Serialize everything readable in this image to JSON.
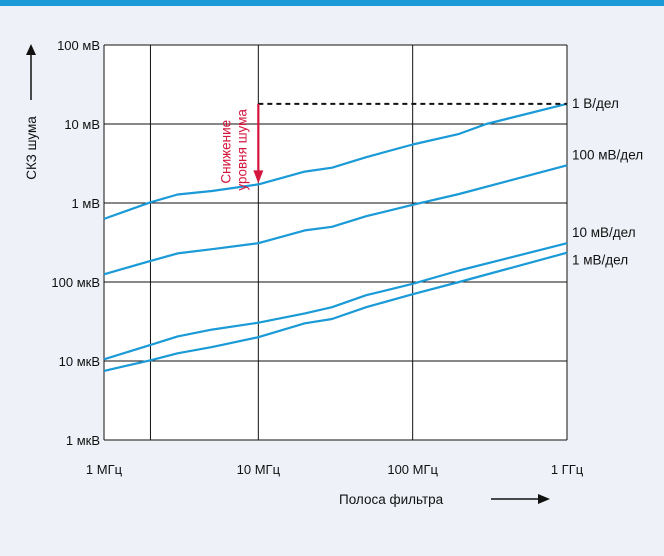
{
  "chart_data": {
    "type": "line",
    "title": "",
    "xlabel": "Полоса фильтра",
    "ylabel": "СКЗ шума",
    "x_scale": "log",
    "y_scale": "log",
    "xlim": [
      1000000.0,
      1000000000.0
    ],
    "ylim": [
      1e-06,
      0.1
    ],
    "grid": true,
    "x_ticks": [
      {
        "value": 1000000.0,
        "label": "1 МГц"
      },
      {
        "value": 10000000.0,
        "label": "10 МГц"
      },
      {
        "value": 100000000.0,
        "label": "100 МГц"
      },
      {
        "value": 1000000000.0,
        "label": "1 ГГц"
      }
    ],
    "x_extra_grid": [
      2000000.0
    ],
    "y_ticks": [
      {
        "value": 1e-06,
        "label": "1 мкВ"
      },
      {
        "value": 1e-05,
        "label": "10 мкВ"
      },
      {
        "value": 0.0001,
        "label": "100 мкВ"
      },
      {
        "value": 0.001,
        "label": "1 мВ"
      },
      {
        "value": 0.01,
        "label": "10 мВ"
      },
      {
        "value": 0.1,
        "label": "100 мВ"
      }
    ],
    "series": [
      {
        "name": "1 В/дел",
        "x": [
          1000000.0,
          2000000.0,
          3000000.0,
          5000000.0,
          10000000.0,
          20000000.0,
          30000000.0,
          50000000.0,
          100000000.0,
          200000000.0,
          300000000.0,
          1000000000.0
        ],
        "y": [
          0.00063,
          0.00102,
          0.00128,
          0.00142,
          0.00172,
          0.0025,
          0.0028,
          0.0038,
          0.0055,
          0.0075,
          0.01,
          0.018
        ]
      },
      {
        "name": "100 мВ/дел",
        "x": [
          1000000.0,
          2000000.0,
          3000000.0,
          5000000.0,
          10000000.0,
          20000000.0,
          30000000.0,
          50000000.0,
          100000000.0,
          200000000.0,
          1000000000.0
        ],
        "y": [
          0.000125,
          0.000185,
          0.00023,
          0.00026,
          0.00031,
          0.00045,
          0.0005,
          0.00068,
          0.00095,
          0.0013,
          0.003
        ]
      },
      {
        "name": "10 мВ/дел",
        "x": [
          1000000.0,
          2000000.0,
          3000000.0,
          5000000.0,
          10000000.0,
          20000000.0,
          30000000.0,
          50000000.0,
          100000000.0,
          200000000.0,
          1000000000.0
        ],
        "y": [
          1.05e-05,
          1.6e-05,
          2.05e-05,
          2.5e-05,
          3.05e-05,
          4e-05,
          4.8e-05,
          6.8e-05,
          9.5e-05,
          0.00014,
          0.00031
        ]
      },
      {
        "name": "1 мВ/дел",
        "x": [
          1000000.0,
          2000000.0,
          3000000.0,
          5000000.0,
          10000000.0,
          20000000.0,
          30000000.0,
          50000000.0,
          100000000.0,
          200000000.0,
          1000000000.0
        ],
        "y": [
          7.5e-06,
          1.02e-05,
          1.25e-05,
          1.5e-05,
          2e-05,
          3e-05,
          3.4e-05,
          4.8e-05,
          7e-05,
          0.0001,
          0.000235
        ]
      }
    ],
    "annotation": {
      "text_lines": [
        "Снижение",
        "уровня шума"
      ],
      "arrow_x": 10000000.0,
      "arrow_from_y": 0.018,
      "arrow_to_y": 0.00172,
      "reference_line_y": 0.018,
      "reference_line_x": [
        10000000.0,
        1000000000.0
      ]
    }
  },
  "colors": {
    "series": "#1a9ad6",
    "annotation": "#d4163c",
    "background": "#eef2f8",
    "top_bar": "#1a9ad6"
  }
}
